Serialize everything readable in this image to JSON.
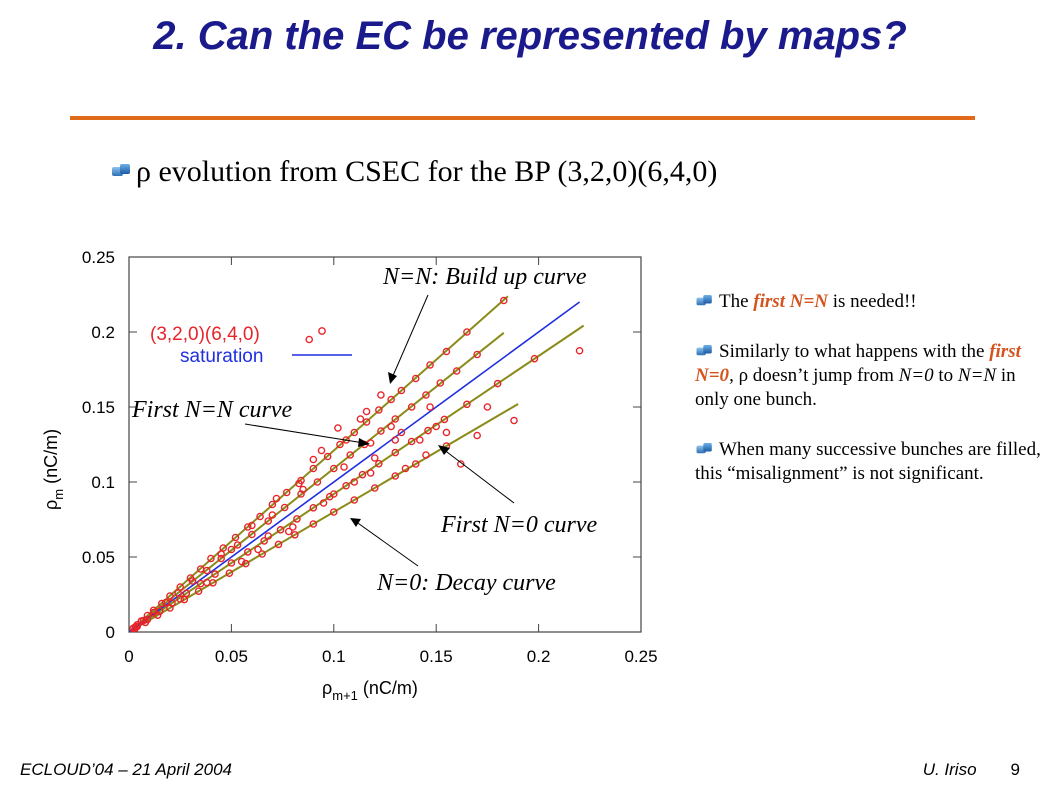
{
  "slide": {
    "title": "2. Can the EC be represented by maps?",
    "bullet_text": "ρ evolution  from CSEC for the BP (3,2,0)(6,4,0)",
    "side_notes": {
      "n1_pre": "The ",
      "n1_hl": "first N=N",
      "n1_post": " is needed!!",
      "n2_pre": "Similarly to what happens with the ",
      "n2_hl": "first N=0",
      "n2_mid": ", ρ doesn’t jump from ",
      "n2_it1": "N=0",
      "n2_mid2": " to ",
      "n2_it2": "N=N",
      "n2_post": " in only one bunch.",
      "n3": "When many successive bunches are filled, this “misalignment” is not significant."
    },
    "footer_left": "ECLOUD’04 – 21 April 2004",
    "footer_author": "U. Iriso",
    "footer_page": "9"
  },
  "colors": {
    "title": "#1a1a8c",
    "rule": "#e06b1a",
    "points": "#e8242a",
    "fit_lines": "#8b8b1a",
    "saturation": "#1f2fe0",
    "highlight": "#d5531d"
  },
  "chart_data": {
    "type": "scatter",
    "xlim": [
      0,
      0.25
    ],
    "ylim": [
      0,
      0.25
    ],
    "x_ticks": [
      "0",
      "0.05",
      "0.1",
      "0.15",
      "0.2",
      "0.25"
    ],
    "y_ticks": [
      "0",
      "0.05",
      "0.1",
      "0.15",
      "0.2",
      "0.25"
    ],
    "xlabel_main": "ρ",
    "xlabel_sub": "m+1",
    "xlabel_unit": " (nC/m)",
    "ylabel_main": "ρ",
    "ylabel_sub": "m",
    "ylabel_unit": " (nC/m)",
    "grid": false,
    "legend_position": "top-left",
    "series": [
      {
        "name": "(3,2,0)(6,4,0)",
        "kind": "points"
      },
      {
        "name": "saturation",
        "kind": "line",
        "x": [
          0,
          0.22
        ],
        "y": [
          0,
          0.22
        ]
      }
    ],
    "fit_lines": [
      {
        "slope": 1.21,
        "x_end": 0.185
      },
      {
        "slope": 1.09,
        "x_end": 0.183
      },
      {
        "slope": 0.92,
        "x_end": 0.222
      },
      {
        "slope": 0.8,
        "x_end": 0.19
      }
    ],
    "points": [
      [
        0.002,
        0.0024
      ],
      [
        0.004,
        0.0048
      ],
      [
        0.006,
        0.0073
      ],
      [
        0.009,
        0.011
      ],
      [
        0.012,
        0.0145
      ],
      [
        0.016,
        0.019
      ],
      [
        0.02,
        0.024
      ],
      [
        0.025,
        0.03
      ],
      [
        0.03,
        0.036
      ],
      [
        0.035,
        0.042
      ],
      [
        0.04,
        0.049
      ],
      [
        0.046,
        0.056
      ],
      [
        0.052,
        0.063
      ],
      [
        0.058,
        0.07
      ],
      [
        0.064,
        0.077
      ],
      [
        0.07,
        0.085
      ],
      [
        0.077,
        0.093
      ],
      [
        0.084,
        0.101
      ],
      [
        0.09,
        0.109
      ],
      [
        0.097,
        0.117
      ],
      [
        0.103,
        0.125
      ],
      [
        0.11,
        0.133
      ],
      [
        0.116,
        0.14
      ],
      [
        0.122,
        0.148
      ],
      [
        0.128,
        0.155
      ],
      [
        0.133,
        0.161
      ],
      [
        0.14,
        0.169
      ],
      [
        0.147,
        0.178
      ],
      [
        0.155,
        0.187
      ],
      [
        0.165,
        0.2
      ],
      [
        0.183,
        0.221
      ],
      [
        0.003,
        0.0033
      ],
      [
        0.007,
        0.0076
      ],
      [
        0.012,
        0.013
      ],
      [
        0.018,
        0.0196
      ],
      [
        0.024,
        0.026
      ],
      [
        0.031,
        0.034
      ],
      [
        0.038,
        0.041
      ],
      [
        0.045,
        0.049
      ],
      [
        0.053,
        0.058
      ],
      [
        0.06,
        0.065
      ],
      [
        0.068,
        0.074
      ],
      [
        0.076,
        0.083
      ],
      [
        0.084,
        0.092
      ],
      [
        0.092,
        0.1
      ],
      [
        0.1,
        0.109
      ],
      [
        0.108,
        0.118
      ],
      [
        0.115,
        0.125
      ],
      [
        0.123,
        0.134
      ],
      [
        0.13,
        0.142
      ],
      [
        0.138,
        0.15
      ],
      [
        0.145,
        0.158
      ],
      [
        0.152,
        0.166
      ],
      [
        0.16,
        0.174
      ],
      [
        0.17,
        0.185
      ],
      [
        0.004,
        0.0037
      ],
      [
        0.009,
        0.0083
      ],
      [
        0.015,
        0.0138
      ],
      [
        0.021,
        0.0193
      ],
      [
        0.028,
        0.0258
      ],
      [
        0.035,
        0.0322
      ],
      [
        0.042,
        0.0386
      ],
      [
        0.05,
        0.046
      ],
      [
        0.058,
        0.0534
      ],
      [
        0.066,
        0.0607
      ],
      [
        0.074,
        0.0681
      ],
      [
        0.082,
        0.0754
      ],
      [
        0.09,
        0.0828
      ],
      [
        0.098,
        0.0902
      ],
      [
        0.106,
        0.0975
      ],
      [
        0.114,
        0.1049
      ],
      [
        0.122,
        0.1122
      ],
      [
        0.13,
        0.1196
      ],
      [
        0.138,
        0.127
      ],
      [
        0.146,
        0.1343
      ],
      [
        0.154,
        0.1417
      ],
      [
        0.165,
        0.1518
      ],
      [
        0.18,
        0.1656
      ],
      [
        0.198,
        0.1822
      ],
      [
        0.22,
        0.1875
      ],
      [
        0.003,
        0.0024
      ],
      [
        0.008,
        0.0064
      ],
      [
        0.014,
        0.0112
      ],
      [
        0.02,
        0.016
      ],
      [
        0.027,
        0.0216
      ],
      [
        0.034,
        0.0272
      ],
      [
        0.041,
        0.0328
      ],
      [
        0.049,
        0.0392
      ],
      [
        0.057,
        0.0456
      ],
      [
        0.065,
        0.052
      ],
      [
        0.073,
        0.0584
      ],
      [
        0.081,
        0.0648
      ],
      [
        0.09,
        0.072
      ],
      [
        0.1,
        0.08
      ],
      [
        0.11,
        0.088
      ],
      [
        0.12,
        0.096
      ],
      [
        0.13,
        0.104
      ],
      [
        0.14,
        0.112
      ],
      [
        0.155,
        0.124
      ],
      [
        0.17,
        0.131
      ],
      [
        0.188,
        0.141
      ],
      [
        0.05,
        0.055
      ],
      [
        0.06,
        0.071
      ],
      [
        0.072,
        0.089
      ],
      [
        0.085,
        0.095
      ],
      [
        0.094,
        0.121
      ],
      [
        0.102,
        0.136
      ],
      [
        0.106,
        0.128
      ],
      [
        0.118,
        0.126
      ],
      [
        0.13,
        0.128
      ],
      [
        0.12,
        0.116
      ],
      [
        0.135,
        0.109
      ],
      [
        0.142,
        0.128
      ],
      [
        0.11,
        0.1
      ],
      [
        0.095,
        0.086
      ],
      [
        0.078,
        0.067
      ],
      [
        0.068,
        0.064
      ],
      [
        0.055,
        0.047
      ],
      [
        0.045,
        0.052
      ],
      [
        0.038,
        0.033
      ],
      [
        0.025,
        0.022
      ],
      [
        0.088,
        0.195
      ],
      [
        0.133,
        0.133
      ],
      [
        0.155,
        0.133
      ],
      [
        0.175,
        0.15
      ],
      [
        0.162,
        0.112
      ],
      [
        0.145,
        0.118
      ],
      [
        0.118,
        0.106
      ],
      [
        0.128,
        0.137
      ],
      [
        0.08,
        0.07
      ],
      [
        0.063,
        0.055
      ],
      [
        0.09,
        0.115
      ],
      [
        0.105,
        0.11
      ],
      [
        0.116,
        0.147
      ],
      [
        0.123,
        0.158
      ],
      [
        0.147,
        0.15
      ],
      [
        0.15,
        0.137
      ],
      [
        0.113,
        0.142
      ],
      [
        0.1,
        0.092
      ],
      [
        0.083,
        0.099
      ],
      [
        0.07,
        0.078
      ]
    ],
    "annotations": [
      "N=N: Build up curve",
      "First N=N curve",
      "First N=0 curve",
      "N=0: Decay curve"
    ]
  }
}
